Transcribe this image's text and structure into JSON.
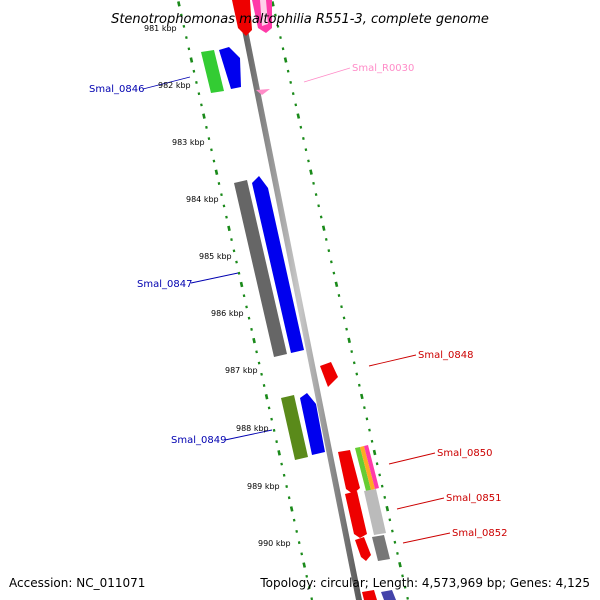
{
  "title": "Stenotrophomonas maltophilia R551-3, complete genome",
  "footer": {
    "accession": "Accession: NC_011071",
    "stats": "Topology: circular; Length: 4,573,969 bp; Genes: 4,125"
  },
  "tick_labels": [
    {
      "text": "981 kbp"
    },
    {
      "text": "982 kbp"
    },
    {
      "text": "983 kbp"
    },
    {
      "text": "984 kbp"
    },
    {
      "text": "985 kbp"
    },
    {
      "text": "986 kbp"
    },
    {
      "text": "987 kbp"
    },
    {
      "text": "988 kbp"
    },
    {
      "text": "989 kbp"
    },
    {
      "text": "990 kbp"
    }
  ],
  "gene_labels": [
    {
      "text": "Smal_0846",
      "color": "#0000b0"
    },
    {
      "text": "Smal_R0030",
      "color": "#ff8cc8"
    },
    {
      "text": "Smal_0847",
      "color": "#0000b0"
    },
    {
      "text": "Smal_0848",
      "color": "#cc0000"
    },
    {
      "text": "Smal_0849",
      "color": "#0000b0"
    },
    {
      "text": "Smal_0850",
      "color": "#cc0000"
    },
    {
      "text": "Smal_0851",
      "color": "#cc0000"
    },
    {
      "text": "Smal_0852",
      "color": "#cc0000"
    }
  ],
  "colors": {
    "backbone": "#8a8a8a",
    "ticks": "#1a8a1a",
    "cds_blue": "#0000ee",
    "cds_red": "#ee0000",
    "cds_green": "#33cc33",
    "cds_olive": "#5a8a1a",
    "cds_gray": "#666666",
    "rna_pink": "#ff8cc8"
  }
}
